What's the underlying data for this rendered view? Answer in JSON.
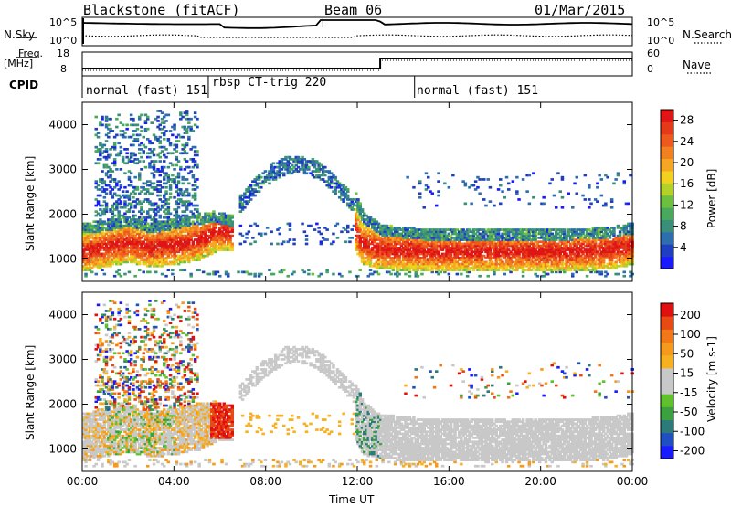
{
  "header": {
    "station": "Blackstone (fitACF)",
    "beam": "Beam 06",
    "date": "01/Mar/2015"
  },
  "panels": {
    "nsky_label": "N.Sky",
    "nsearch_label": "N.Search",
    "freq_label": "Freq.",
    "freq_unit": "[MHz]",
    "nave_label": "Nave",
    "cpid_label": "CPID",
    "nsky_ticks": [
      "10^5",
      "10^0"
    ],
    "nsearch_ticks": [
      "10^5",
      "10^0"
    ],
    "freq_ticks": [
      "18",
      "8"
    ],
    "nave_ticks": [
      "60",
      "0"
    ],
    "cpid_segments": [
      {
        "start": 0.0,
        "label": "normal (fast) 151"
      },
      {
        "start": 5.5,
        "label": "rbsp CT-trig 220"
      },
      {
        "start": 14.5,
        "label": "normal (fast) 151"
      }
    ]
  },
  "chart_data": [
    {
      "type": "heatmap",
      "title": "",
      "xlabel": "Time UT",
      "ylabel": "Slant Range [km]",
      "xlim": [
        0,
        24
      ],
      "ylim": [
        500,
        4500
      ],
      "x_ticks": [
        "00:00",
        "04:00",
        "08:00",
        "12:00",
        "16:00",
        "20:00",
        "00:00"
      ],
      "y_ticks": [
        "1000",
        "2000",
        "3000",
        "4000"
      ],
      "colorbar": {
        "label": "Power [dB]",
        "ticks": [
          "4",
          "8",
          "12",
          "16",
          "20",
          "24",
          "28"
        ],
        "range": [
          0,
          30
        ],
        "colors": [
          "#1a1aff",
          "#1f3fbf",
          "#2e6db0",
          "#3a8f7a",
          "#48a85c",
          "#6cbf3f",
          "#b4d12a",
          "#f2d020",
          "#f5a623",
          "#f08020",
          "#ee5a1e",
          "#e53a1a",
          "#e01515"
        ]
      },
      "series": [
        {
          "kind": "main-echo-band",
          "values": [
            [
              0,
              1050,
              1650
            ],
            [
              1,
              1150,
              1700
            ],
            [
              2,
              1250,
              1800
            ],
            [
              3,
              1150,
              1650
            ],
            [
              4,
              1200,
              1750
            ],
            [
              5,
              1300,
              1850
            ],
            [
              5.8,
              1500,
              1900
            ],
            [
              6.5,
              1500,
              1800
            ]
          ]
        },
        {
          "kind": "main-echo-band",
          "values": [
            [
              11.8,
              1600,
              2400
            ],
            [
              12.2,
              1200,
              1900
            ],
            [
              13,
              1100,
              1600
            ],
            [
              15,
              1050,
              1500
            ],
            [
              17,
              1050,
              1500
            ],
            [
              19,
              1050,
              1500
            ],
            [
              21,
              1050,
              1500
            ],
            [
              23,
              1100,
              1550
            ],
            [
              24,
              1200,
              1650
            ]
          ]
        }
      ]
    },
    {
      "type": "heatmap",
      "title": "",
      "xlabel": "Time UT",
      "ylabel": "Slant Range [km]",
      "xlim": [
        0,
        24
      ],
      "ylim": [
        500,
        4500
      ],
      "x_ticks": [
        "00:00",
        "04:00",
        "08:00",
        "12:00",
        "16:00",
        "20:00",
        "00:00"
      ],
      "y_ticks": [
        "1000",
        "2000",
        "3000",
        "4000"
      ],
      "colorbar": {
        "label": "Velocity [m s-1]",
        "ticks": [
          "200",
          "100",
          "50",
          "15",
          "-15",
          "-50",
          "-100",
          "-200"
        ],
        "range": [
          -250,
          250
        ],
        "colors": [
          "#1a1aff",
          "#1f4fc0",
          "#2d7a7a",
          "#3aa040",
          "#5fc22c",
          "#c8c8c8",
          "#c8c8c8",
          "#f6b020",
          "#f59a1c",
          "#f07818",
          "#e84a14",
          "#e01010"
        ]
      }
    }
  ]
}
